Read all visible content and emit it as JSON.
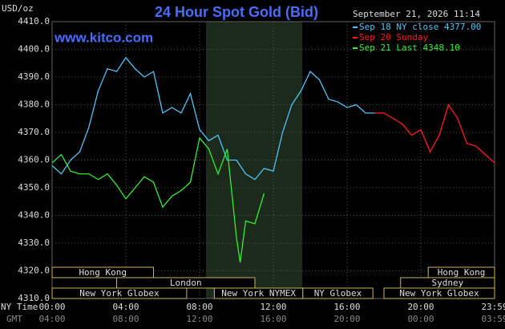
{
  "chart_data": {
    "type": "line",
    "title": "24 Hour Spot Gold (Bid)",
    "unit": "USD/oz",
    "site": "www.kitco.com",
    "timestamp": "September 21, 2026 11:14",
    "ylim": [
      4310,
      4410
    ],
    "yticks": [
      {
        "value": 4310,
        "label": "4310.0"
      },
      {
        "value": 4320,
        "label": "4320.0"
      },
      {
        "value": 4330,
        "label": "4330.0"
      },
      {
        "value": 4340,
        "label": "4340.0"
      },
      {
        "value": 4350,
        "label": "4350.0"
      },
      {
        "value": 4360,
        "label": "4360.0"
      },
      {
        "value": 4370,
        "label": "4370.0"
      },
      {
        "value": 4380,
        "label": "4380.0"
      },
      {
        "value": 4390,
        "label": "4390.0"
      },
      {
        "value": 4400,
        "label": "4400.0"
      },
      {
        "value": 4410,
        "label": "4410.0"
      }
    ],
    "xlim": [
      0,
      24
    ],
    "x_axis_label": "NY Time",
    "x2_axis_label": "GMT",
    "xticks": [
      {
        "value": 0,
        "label": "00:00"
      },
      {
        "value": 4,
        "label": "04:00"
      },
      {
        "value": 8,
        "label": "08:00"
      },
      {
        "value": 12,
        "label": "12:00"
      },
      {
        "value": 16,
        "label": "16:00"
      },
      {
        "value": 20,
        "label": "20:00"
      },
      {
        "value": 24,
        "label": "23:59"
      }
    ],
    "x2ticks": [
      {
        "value": 0,
        "label": "04:00"
      },
      {
        "value": 4,
        "label": "08:00"
      },
      {
        "value": 8,
        "label": "12:00"
      },
      {
        "value": 12,
        "label": "16:00"
      },
      {
        "value": 16,
        "label": "20:00"
      },
      {
        "value": 20,
        "label": "00:00"
      },
      {
        "value": 24,
        "label": "03:59"
      }
    ],
    "grid": true,
    "sessions": [
      {
        "label": "Hong Kong",
        "start": 0,
        "end": 5.5
      },
      {
        "label": "London",
        "start": 3.5,
        "end": 11
      },
      {
        "label": "New York Globex",
        "start": 0,
        "end": 7.3
      },
      {
        "label": "New York NYMEX",
        "start": 8.8,
        "end": 13.6
      },
      {
        "label": "NY Globex",
        "start": 13.6,
        "end": 17.4
      },
      {
        "label": "Hong Kong",
        "start": 20.4,
        "end": 24
      },
      {
        "label": "Sydney",
        "start": 18.9,
        "end": 24
      },
      {
        "label": "New York Globex",
        "start": 18,
        "end": 24
      }
    ],
    "series": [
      {
        "name": "Sep 18 NY close 4377.00",
        "color": "#4fc3f7",
        "x": [
          0,
          0.5,
          1,
          1.5,
          2,
          2.5,
          3,
          3.5,
          4,
          4.5,
          5,
          5.5,
          6,
          6.5,
          7,
          7.5,
          8,
          8.5,
          9,
          9.5,
          10,
          10.5,
          11,
          11.5,
          12,
          12.5,
          13,
          13.5,
          14,
          14.5,
          15,
          15.5,
          16,
          16.5,
          17,
          17.5
        ],
        "values": [
          4358,
          4355,
          4360,
          4363,
          4372,
          4385,
          4393,
          4392,
          4397,
          4393,
          4390,
          4392,
          4377,
          4379,
          4377,
          4384,
          4371,
          4367,
          4369,
          4360,
          4360,
          4355,
          4353,
          4357,
          4356,
          4370,
          4380,
          4385,
          4392,
          4389,
          4382,
          4381,
          4379,
          4380,
          4377,
          4377
        ]
      },
      {
        "name": "Sep 20 Sunday",
        "color": "#ff1a1a",
        "x": [
          17.5,
          18,
          18.5,
          19,
          19.5,
          20,
          20.5,
          21,
          21.5,
          22,
          22.5,
          23,
          23.5,
          24
        ],
        "values": [
          4377,
          4377,
          4375,
          4373,
          4369,
          4371,
          4363,
          4369,
          4380,
          4375,
          4366,
          4365,
          4362,
          4359
        ]
      },
      {
        "name": "Sep 21 Last 4348.10",
        "color": "#33ee33",
        "x": [
          0,
          0.5,
          1,
          1.5,
          2,
          2.5,
          3,
          3.5,
          4,
          4.5,
          5,
          5.5,
          6,
          6.5,
          7,
          7.5,
          8,
          8.5,
          9,
          9.5,
          10,
          10.2,
          10.5,
          11,
          11.5
        ],
        "values": [
          4359,
          4362,
          4356,
          4355,
          4355,
          4353,
          4355,
          4351,
          4346,
          4350,
          4354,
          4352,
          4343,
          4347,
          4349,
          4352,
          4368,
          4364,
          4355,
          4364,
          4332,
          4323,
          4338,
          4337,
          4348
        ]
      }
    ]
  }
}
